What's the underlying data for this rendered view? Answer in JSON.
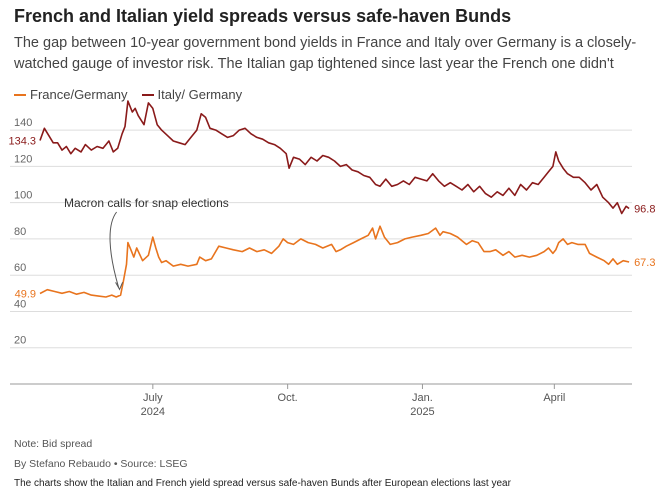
{
  "chart_data": {
    "type": "line",
    "title": "French and Italian yield spreads versus safe-haven Bunds",
    "subtitle": "The gap between 10-year government bond yields in France and Italy over Germany is a closely-watched gauge of investor risk. The Italian gap tightened since last year the French one didn't",
    "xlabel": "",
    "ylabel": "",
    "xlim": [
      "2024-04-15",
      "2025-05-24"
    ],
    "ylim": [
      0,
      150
    ],
    "yticks": [
      20,
      40,
      60,
      80,
      100,
      120,
      140
    ],
    "ytick_labels": [
      "20",
      "40",
      "60",
      "80",
      "100",
      "120",
      "140"
    ],
    "xticks": [
      {
        "date": "2024-07-01",
        "label": "July",
        "sublabel": "2024"
      },
      {
        "date": "2024-10-01",
        "label": "Oct.",
        "sublabel": ""
      },
      {
        "date": "2025-01-01",
        "label": "Jan.",
        "sublabel": "2025"
      },
      {
        "date": "2025-04-01",
        "label": "April",
        "sublabel": ""
      }
    ],
    "grid": true,
    "legend_position": "top-left",
    "annotation": {
      "text": "Macron calls for snap elections",
      "date": "2024-06-09",
      "value": 50
    },
    "series": [
      {
        "name": "France/Germany",
        "color": "#e8741e",
        "start_label": "49.9",
        "end_label": "67.3",
        "points": [
          [
            "2024-04-15",
            49.9
          ],
          [
            "2024-04-20",
            52
          ],
          [
            "2024-04-25",
            51
          ],
          [
            "2024-04-30",
            50
          ],
          [
            "2024-05-05",
            51
          ],
          [
            "2024-05-10",
            49.5
          ],
          [
            "2024-05-15",
            50.5
          ],
          [
            "2024-05-20",
            49
          ],
          [
            "2024-05-25",
            48.5
          ],
          [
            "2024-05-30",
            48
          ],
          [
            "2024-06-03",
            49
          ],
          [
            "2024-06-06",
            48
          ],
          [
            "2024-06-09",
            49
          ],
          [
            "2024-06-11",
            57
          ],
          [
            "2024-06-13",
            66
          ],
          [
            "2024-06-14",
            78
          ],
          [
            "2024-06-16",
            74
          ],
          [
            "2024-06-18",
            70
          ],
          [
            "2024-06-20",
            75
          ],
          [
            "2024-06-24",
            68
          ],
          [
            "2024-06-28",
            71
          ],
          [
            "2024-07-01",
            81
          ],
          [
            "2024-07-03",
            75
          ],
          [
            "2024-07-05",
            70
          ],
          [
            "2024-07-07",
            67
          ],
          [
            "2024-07-10",
            68
          ],
          [
            "2024-07-15",
            65
          ],
          [
            "2024-07-20",
            66
          ],
          [
            "2024-07-25",
            65
          ],
          [
            "2024-07-31",
            66
          ],
          [
            "2024-08-02",
            70
          ],
          [
            "2024-08-06",
            68
          ],
          [
            "2024-08-10",
            69
          ],
          [
            "2024-08-15",
            76
          ],
          [
            "2024-08-20",
            75
          ],
          [
            "2024-08-25",
            74
          ],
          [
            "2024-08-31",
            73
          ],
          [
            "2024-09-05",
            75
          ],
          [
            "2024-09-10",
            73
          ],
          [
            "2024-09-15",
            74
          ],
          [
            "2024-09-20",
            72
          ],
          [
            "2024-09-25",
            76
          ],
          [
            "2024-09-28",
            80
          ],
          [
            "2024-10-01",
            78
          ],
          [
            "2024-10-05",
            77
          ],
          [
            "2024-10-10",
            80
          ],
          [
            "2024-10-15",
            78
          ],
          [
            "2024-10-20",
            77
          ],
          [
            "2024-10-25",
            75
          ],
          [
            "2024-10-31",
            77
          ],
          [
            "2024-11-03",
            73
          ],
          [
            "2024-11-06",
            74
          ],
          [
            "2024-11-10",
            76
          ],
          [
            "2024-11-15",
            78
          ],
          [
            "2024-11-20",
            80
          ],
          [
            "2024-11-25",
            82
          ],
          [
            "2024-11-28",
            86
          ],
          [
            "2024-11-30",
            80
          ],
          [
            "2024-12-03",
            87
          ],
          [
            "2024-12-06",
            81
          ],
          [
            "2024-12-10",
            77
          ],
          [
            "2024-12-15",
            78
          ],
          [
            "2024-12-20",
            80
          ],
          [
            "2024-12-25",
            81
          ],
          [
            "2024-12-31",
            82
          ],
          [
            "2025-01-05",
            83
          ],
          [
            "2025-01-10",
            86
          ],
          [
            "2025-01-13",
            82
          ],
          [
            "2025-01-15",
            84
          ],
          [
            "2025-01-20",
            83
          ],
          [
            "2025-01-25",
            81
          ],
          [
            "2025-01-31",
            77
          ],
          [
            "2025-02-04",
            79
          ],
          [
            "2025-02-08",
            78
          ],
          [
            "2025-02-12",
            73
          ],
          [
            "2025-02-16",
            73
          ],
          [
            "2025-02-20",
            74
          ],
          [
            "2025-02-25",
            71
          ],
          [
            "2025-03-01",
            73
          ],
          [
            "2025-03-05",
            70
          ],
          [
            "2025-03-10",
            71
          ],
          [
            "2025-03-15",
            70
          ],
          [
            "2025-03-20",
            71
          ],
          [
            "2025-03-25",
            73
          ],
          [
            "2025-03-28",
            75
          ],
          [
            "2025-03-31",
            72
          ],
          [
            "2025-04-02",
            74
          ],
          [
            "2025-04-04",
            78
          ],
          [
            "2025-04-07",
            80
          ],
          [
            "2025-04-10",
            77
          ],
          [
            "2025-04-13",
            78
          ],
          [
            "2025-04-17",
            77
          ],
          [
            "2025-04-22",
            77
          ],
          [
            "2025-04-25",
            72
          ],
          [
            "2025-04-30",
            70
          ],
          [
            "2025-05-05",
            68
          ],
          [
            "2025-05-08",
            66
          ],
          [
            "2025-05-11",
            69
          ],
          [
            "2025-05-14",
            66
          ],
          [
            "2025-05-18",
            68
          ],
          [
            "2025-05-22",
            67.3
          ]
        ]
      },
      {
        "name": "Italy/ Germany",
        "color": "#8a1a1a",
        "start_label": "134.3",
        "end_label": "96.8",
        "points": [
          [
            "2024-04-15",
            134.3
          ],
          [
            "2024-04-18",
            141
          ],
          [
            "2024-04-21",
            137
          ],
          [
            "2024-04-24",
            133
          ],
          [
            "2024-04-27",
            133
          ],
          [
            "2024-04-30",
            129
          ],
          [
            "2024-05-03",
            131
          ],
          [
            "2024-05-06",
            127
          ],
          [
            "2024-05-09",
            130
          ],
          [
            "2024-05-13",
            128
          ],
          [
            "2024-05-16",
            132
          ],
          [
            "2024-05-20",
            129
          ],
          [
            "2024-05-24",
            131
          ],
          [
            "2024-05-28",
            130
          ],
          [
            "2024-06-01",
            134
          ],
          [
            "2024-06-04",
            128
          ],
          [
            "2024-06-07",
            130
          ],
          [
            "2024-06-10",
            138
          ],
          [
            "2024-06-12",
            142
          ],
          [
            "2024-06-14",
            156
          ],
          [
            "2024-06-17",
            150
          ],
          [
            "2024-06-19",
            152
          ],
          [
            "2024-06-21",
            148
          ],
          [
            "2024-06-25",
            143
          ],
          [
            "2024-06-28",
            155
          ],
          [
            "2024-07-01",
            152
          ],
          [
            "2024-07-04",
            143
          ],
          [
            "2024-07-07",
            140
          ],
          [
            "2024-07-11",
            137
          ],
          [
            "2024-07-15",
            134
          ],
          [
            "2024-07-19",
            133
          ],
          [
            "2024-07-23",
            132
          ],
          [
            "2024-07-27",
            136
          ],
          [
            "2024-07-31",
            140
          ],
          [
            "2024-08-03",
            149
          ],
          [
            "2024-08-06",
            147
          ],
          [
            "2024-08-09",
            141
          ],
          [
            "2024-08-13",
            140
          ],
          [
            "2024-08-17",
            138
          ],
          [
            "2024-08-21",
            136
          ],
          [
            "2024-08-25",
            137
          ],
          [
            "2024-08-29",
            140
          ],
          [
            "2024-09-02",
            141
          ],
          [
            "2024-09-06",
            138
          ],
          [
            "2024-09-10",
            136
          ],
          [
            "2024-09-14",
            135
          ],
          [
            "2024-09-18",
            133
          ],
          [
            "2024-09-22",
            132
          ],
          [
            "2024-09-26",
            130
          ],
          [
            "2024-09-30",
            127
          ],
          [
            "2024-10-02",
            119
          ],
          [
            "2024-10-05",
            125
          ],
          [
            "2024-10-09",
            124
          ],
          [
            "2024-10-13",
            121
          ],
          [
            "2024-10-17",
            125
          ],
          [
            "2024-10-21",
            123
          ],
          [
            "2024-10-25",
            126
          ],
          [
            "2024-10-29",
            125
          ],
          [
            "2024-11-02",
            123
          ],
          [
            "2024-11-06",
            120
          ],
          [
            "2024-11-10",
            121
          ],
          [
            "2024-11-14",
            118
          ],
          [
            "2024-11-18",
            117
          ],
          [
            "2024-11-22",
            115
          ],
          [
            "2024-11-26",
            114
          ],
          [
            "2024-11-30",
            110
          ],
          [
            "2024-12-03",
            109
          ],
          [
            "2024-12-07",
            113
          ],
          [
            "2024-12-11",
            109
          ],
          [
            "2024-12-15",
            110
          ],
          [
            "2024-12-19",
            112
          ],
          [
            "2024-12-23",
            110
          ],
          [
            "2024-12-27",
            114
          ],
          [
            "2024-12-31",
            113
          ],
          [
            "2025-01-04",
            112
          ],
          [
            "2025-01-08",
            116
          ],
          [
            "2025-01-12",
            112
          ],
          [
            "2025-01-16",
            109
          ],
          [
            "2025-01-20",
            111
          ],
          [
            "2025-01-24",
            109
          ],
          [
            "2025-01-28",
            107
          ],
          [
            "2025-02-01",
            110
          ],
          [
            "2025-02-05",
            106
          ],
          [
            "2025-02-09",
            109
          ],
          [
            "2025-02-13",
            105
          ],
          [
            "2025-02-17",
            103
          ],
          [
            "2025-02-21",
            106
          ],
          [
            "2025-02-25",
            104
          ],
          [
            "2025-03-01",
            108
          ],
          [
            "2025-03-05",
            104
          ],
          [
            "2025-03-09",
            110
          ],
          [
            "2025-03-13",
            107
          ],
          [
            "2025-03-17",
            111
          ],
          [
            "2025-03-21",
            110
          ],
          [
            "2025-03-25",
            114
          ],
          [
            "2025-03-28",
            117
          ],
          [
            "2025-03-31",
            120
          ],
          [
            "2025-04-02",
            128
          ],
          [
            "2025-04-04",
            123
          ],
          [
            "2025-04-07",
            119
          ],
          [
            "2025-04-10",
            116
          ],
          [
            "2025-04-14",
            114
          ],
          [
            "2025-04-18",
            114
          ],
          [
            "2025-04-22",
            111
          ],
          [
            "2025-04-26",
            107
          ],
          [
            "2025-04-30",
            110
          ],
          [
            "2025-05-04",
            103
          ],
          [
            "2025-05-08",
            100
          ],
          [
            "2025-05-11",
            97
          ],
          [
            "2025-05-14",
            100
          ],
          [
            "2025-05-17",
            94
          ],
          [
            "2025-05-20",
            98
          ],
          [
            "2025-05-22",
            96.8
          ]
        ]
      }
    ]
  },
  "footer": {
    "note": "Note: Bid spread",
    "byline": "By Stefano Rebaudo • Source: LSEG",
    "caption": "The charts show the Italian and French yield spread versus safe-haven Bunds after European elections last year"
  }
}
